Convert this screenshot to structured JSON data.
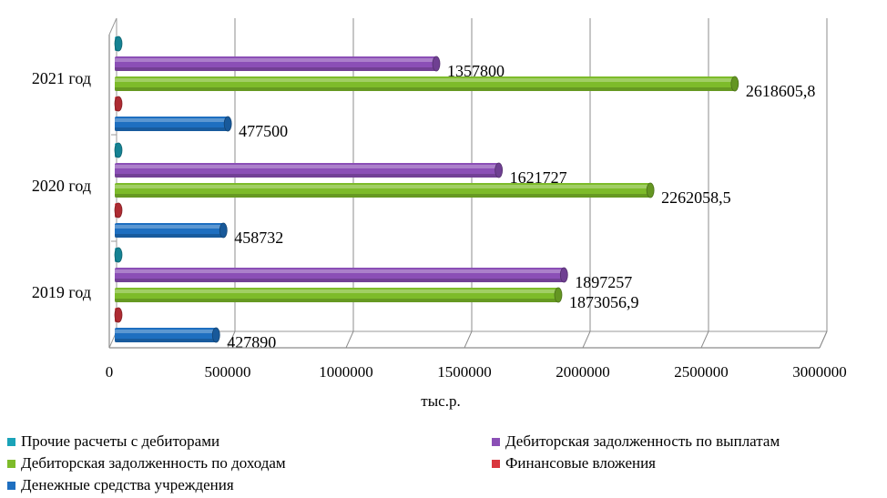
{
  "chart_data": {
    "type": "bar",
    "orientation": "horizontal",
    "categories": [
      "2021 год",
      "2020 год",
      "2019 год"
    ],
    "series": [
      {
        "name": "Прочие расчеты с дебиторами",
        "color": "#1aa3b8",
        "values": [
          0,
          0,
          0
        ],
        "labels": [
          "",
          "",
          ""
        ]
      },
      {
        "name": "Дебиторская задолженность по выплатам",
        "color": "#8b4fb6",
        "values": [
          1357800,
          1621727,
          1897257
        ],
        "labels": [
          "1357800",
          "1621727",
          "1897257"
        ]
      },
      {
        "name": "Дебиторская задолженность по доходам",
        "color": "#7dbb2a",
        "values": [
          2618605.8,
          2262058.5,
          1873056.9
        ],
        "labels": [
          "2618605,8",
          "2262058,5",
          "1873056,9"
        ]
      },
      {
        "name": "Финансовые вложения",
        "color": "#d9363e",
        "values": [
          0,
          0,
          0
        ],
        "labels": [
          "",
          "",
          ""
        ]
      },
      {
        "name": "Денежные средства учреждения",
        "color": "#1e6fc0",
        "values": [
          477500,
          458732,
          427890
        ],
        "labels": [
          "477500",
          "458732",
          "427890"
        ]
      }
    ],
    "xlim": [
      0,
      3000000
    ],
    "x_ticks": [
      "0",
      "500000",
      "1000000",
      "1500000",
      "2000000",
      "2500000",
      "3000000"
    ],
    "xlabel": "тыс.р.",
    "grid": true,
    "legend_position": "bottom",
    "legend": [
      {
        "label": "Прочие расчеты с дебиторами",
        "color": "#1aa3b8"
      },
      {
        "label": "Дебиторская задолженность по выплатам",
        "color": "#8b4fb6"
      },
      {
        "label": "Дебиторская задолженность по доходам",
        "color": "#7dbb2a"
      },
      {
        "label": "Финансовые вложения",
        "color": "#d9363e"
      },
      {
        "label": "Денежные средства учреждения",
        "color": "#1e6fc0"
      }
    ]
  }
}
